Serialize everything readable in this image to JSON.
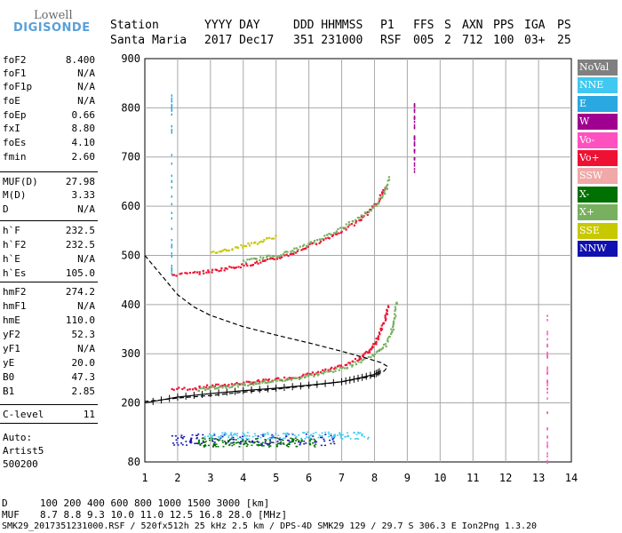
{
  "logo": {
    "line1": "Lowell",
    "line2": "DIGISONDE"
  },
  "header": {
    "labels": [
      "Station",
      "YYYY DAY",
      "DDD HHMMSS",
      "P1",
      "FFS",
      "S",
      "AXN",
      "PPS",
      "IGA",
      "PS"
    ],
    "values": [
      "Santa Maria",
      "2017 Dec17",
      "351 231000",
      "RSF",
      "005",
      "2",
      "712",
      "100",
      "03+",
      "25"
    ]
  },
  "params": [
    {
      "label": "foF2",
      "value": "8.400"
    },
    {
      "label": "foF1",
      "value": "N/A"
    },
    {
      "label": "foF1p",
      "value": "N/A"
    },
    {
      "label": "foE",
      "value": "N/A"
    },
    {
      "label": "foEp",
      "value": "0.66"
    },
    {
      "label": "fxI",
      "value": "8.80"
    },
    {
      "label": "foEs",
      "value": "4.10"
    },
    {
      "label": "fmin",
      "value": "2.60"
    },
    {
      "label": "MUF(D)",
      "value": "27.98"
    },
    {
      "label": "M(D)",
      "value": "3.33"
    },
    {
      "label": "D",
      "value": "N/A"
    },
    {
      "label": "h`F",
      "value": "232.5"
    },
    {
      "label": "h`F2",
      "value": "232.5"
    },
    {
      "label": "h`E",
      "value": "N/A"
    },
    {
      "label": "h`Es",
      "value": "105.0"
    },
    {
      "label": "hmF2",
      "value": "274.2"
    },
    {
      "label": "hmF1",
      "value": "N/A"
    },
    {
      "label": "hmE",
      "value": "110.0"
    },
    {
      "label": "yF2",
      "value": "52.3"
    },
    {
      "label": "yF1",
      "value": "N/A"
    },
    {
      "label": "yE",
      "value": "20.0"
    },
    {
      "label": "B0",
      "value": "47.3"
    },
    {
      "label": "B1",
      "value": "2.85"
    },
    {
      "label": "C-level",
      "value": "11"
    }
  ],
  "auto": {
    "line1": "Auto:",
    "line2": "Artist5",
    "line3": "500200"
  },
  "legend": [
    {
      "name": "NoVal",
      "color": "#808080"
    },
    {
      "name": "NNE",
      "color": "#40c8f0"
    },
    {
      "name": "E",
      "color": "#2aa8e0"
    },
    {
      "name": "W",
      "color": "#a00090"
    },
    {
      "name": "Vo-",
      "color": "#ff50c0"
    },
    {
      "name": "Vo+",
      "color": "#ee1133"
    },
    {
      "name": "SSW",
      "color": "#f0a8a8"
    },
    {
      "name": "X-",
      "color": "#007000"
    },
    {
      "name": "X+",
      "color": "#78b060"
    },
    {
      "name": "SSE",
      "color": "#c8c800"
    },
    {
      "name": "NNW",
      "color": "#1010b0"
    }
  ],
  "footer": {
    "row1_label": "D",
    "row1_values": "100  200  400  600  800 1000 1500 3000 [km]",
    "row2_label": "MUF",
    "row2_values": "8.7  8.8  9.3 10.0 11.0 12.5 16.8 28.0 [MHz]",
    "row3": "SMK29_2017351231000.RSF / 520fx512h 25 kHz 2.5 km / DPS-4D SMK29 129 / 29.7 S 306.3 E Ion2Png 1.3.20"
  },
  "chart_data": {
    "type": "scatter",
    "xlim": [
      1,
      14
    ],
    "ylim": [
      80,
      900
    ],
    "x_ticks": [
      1,
      2,
      3,
      4,
      5,
      6,
      7,
      8,
      9,
      10,
      11,
      12,
      13,
      14
    ],
    "y_ticks": [
      80,
      200,
      300,
      400,
      500,
      600,
      700,
      800,
      900
    ],
    "grid": true,
    "series": [
      {
        "name": "Vo+",
        "color": "#ee1133",
        "kind": "trace",
        "points": [
          [
            1.8,
            228
          ],
          [
            2.5,
            230
          ],
          [
            3,
            234
          ],
          [
            3.5,
            237
          ],
          [
            4,
            240
          ],
          [
            4.5,
            244
          ],
          [
            5,
            248
          ],
          [
            5.5,
            252
          ],
          [
            6,
            258
          ],
          [
            6.5,
            266
          ],
          [
            7,
            275
          ],
          [
            7.5,
            290
          ],
          [
            7.8,
            305
          ],
          [
            8,
            322
          ],
          [
            8.15,
            345
          ],
          [
            8.3,
            370
          ],
          [
            8.4,
            400
          ]
        ]
      },
      {
        "name": "X+",
        "color": "#78b060",
        "kind": "trace",
        "points": [
          [
            2.6,
            226
          ],
          [
            3,
            231
          ],
          [
            3.5,
            234
          ],
          [
            4,
            237
          ],
          [
            4.5,
            241
          ],
          [
            5,
            245
          ],
          [
            5.5,
            249
          ],
          [
            6,
            255
          ],
          [
            6.5,
            262
          ],
          [
            7,
            270
          ],
          [
            7.5,
            283
          ],
          [
            8,
            300
          ],
          [
            8.3,
            318
          ],
          [
            8.5,
            345
          ],
          [
            8.6,
            375
          ],
          [
            8.65,
            410
          ]
        ]
      },
      {
        "name": "Vo+",
        "color": "#ee1133",
        "kind": "trace",
        "points": [
          [
            1.8,
            460
          ],
          [
            2.5,
            464
          ],
          [
            3,
            468
          ],
          [
            3.5,
            474
          ],
          [
            4,
            480
          ],
          [
            4.5,
            486
          ],
          [
            5,
            494
          ],
          [
            5.5,
            505
          ],
          [
            6,
            520
          ],
          [
            6.5,
            534
          ],
          [
            7,
            550
          ],
          [
            7.5,
            570
          ],
          [
            7.8,
            590
          ],
          [
            8.1,
            610
          ],
          [
            8.3,
            640
          ]
        ]
      },
      {
        "name": "X+",
        "color": "#78b060",
        "kind": "trace",
        "points": [
          [
            4,
            488
          ],
          [
            4.5,
            494
          ],
          [
            5,
            500
          ],
          [
            5.5,
            510
          ],
          [
            6,
            524
          ],
          [
            6.5,
            540
          ],
          [
            7,
            556
          ],
          [
            7.5,
            578
          ],
          [
            8,
            600
          ],
          [
            8.3,
            630
          ],
          [
            8.45,
            660
          ]
        ]
      },
      {
        "name": "SSE",
        "color": "#c8c800",
        "kind": "trace",
        "points": [
          [
            3,
            505
          ],
          [
            3.5,
            512
          ],
          [
            4,
            520
          ],
          [
            4.5,
            528
          ],
          [
            5,
            540
          ]
        ]
      },
      {
        "name": "NNW",
        "color": "#1010b0",
        "kind": "band",
        "x_range": [
          1.8,
          6.8
        ],
        "y_range": [
          115,
          138
        ]
      },
      {
        "name": "NNE",
        "color": "#40c8f0",
        "kind": "band",
        "x_range": [
          2.8,
          7.8
        ],
        "y_range": [
          128,
          142
        ]
      },
      {
        "name": "X-",
        "color": "#007000",
        "kind": "band",
        "x_range": [
          2.6,
          6.2
        ],
        "y_range": [
          112,
          130
        ]
      },
      {
        "name": "E",
        "color": "#2aa8e0",
        "kind": "vline",
        "x": 1.8,
        "y_range": [
          460,
          830
        ]
      },
      {
        "name": "Vo-",
        "color": "#ff50c0",
        "kind": "vline",
        "x": 13.25,
        "y_range": [
          80,
          380
        ]
      },
      {
        "name": "W",
        "color": "#a00090",
        "kind": "vline",
        "x": 9.2,
        "y_range": [
          670,
          810
        ]
      }
    ],
    "profile": {
      "name": "electron density profile",
      "color": "#000000",
      "style": "dashed",
      "points": [
        [
          1,
          500
        ],
        [
          1.5,
          460
        ],
        [
          2,
          420
        ],
        [
          2.5,
          395
        ],
        [
          3,
          378
        ],
        [
          4,
          355
        ],
        [
          5,
          338
        ],
        [
          6,
          322
        ],
        [
          7,
          305
        ],
        [
          7.8,
          290
        ],
        [
          8.2,
          282
        ],
        [
          8.4,
          274
        ],
        [
          8.3,
          265
        ],
        [
          8,
          255
        ],
        [
          7,
          243
        ],
        [
          6,
          235
        ],
        [
          5,
          228
        ],
        [
          4,
          222
        ],
        [
          3,
          215
        ],
        [
          2,
          210
        ],
        [
          1.5,
          206
        ],
        [
          1,
          203
        ]
      ]
    },
    "virtual_height_fit": {
      "name": "O-trace fit",
      "color": "#000000",
      "style": "solid-ticked",
      "points": [
        [
          1,
          200
        ],
        [
          2,
          212
        ],
        [
          3,
          219
        ],
        [
          4,
          225
        ],
        [
          5,
          230
        ],
        [
          6,
          236
        ],
        [
          7,
          243
        ],
        [
          7.5,
          250
        ],
        [
          8,
          258
        ],
        [
          8.2,
          265
        ]
      ]
    }
  }
}
